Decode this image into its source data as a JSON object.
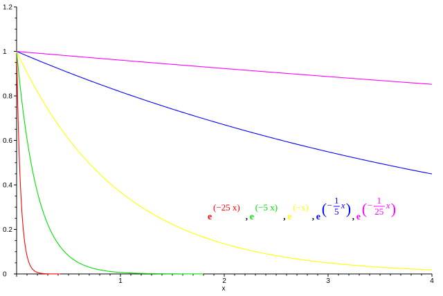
{
  "chart_data": {
    "type": "line",
    "title": "",
    "xlabel": "x",
    "ylabel": "",
    "xlim": [
      0,
      4
    ],
    "ylim": [
      0,
      1.2
    ],
    "x_ticks": [
      "1",
      "2",
      "3",
      "4"
    ],
    "y_ticks": [
      "0",
      "0.2",
      "0.4",
      "0.6",
      "0.8",
      "1",
      "1.2"
    ],
    "grid": false,
    "legend_position": "center-right",
    "legend_base": "e",
    "legend_separator": ",",
    "series": [
      {
        "rate": 25,
        "color": "#ff0000",
        "end_x": 0.42,
        "legend_exponent": "(−25 x)",
        "x": [
          0,
          0.02,
          0.04,
          0.06,
          0.08,
          0.1,
          0.12,
          0.16,
          0.2,
          0.25,
          0.3,
          0.42
        ],
        "y": [
          1,
          0.607,
          0.368,
          0.223,
          0.135,
          0.082,
          0.05,
          0.018,
          0.007,
          0.002,
          0.001,
          0
        ]
      },
      {
        "rate": 5,
        "color": "#00e000",
        "end_x": 1.8,
        "legend_exponent": "(−5 x)",
        "x": [
          0,
          0.1,
          0.2,
          0.3,
          0.4,
          0.5,
          0.6,
          0.8,
          1.0,
          1.2,
          1.5,
          1.8
        ],
        "y": [
          1,
          0.607,
          0.368,
          0.223,
          0.135,
          0.082,
          0.05,
          0.018,
          0.007,
          0.002,
          0.001,
          0
        ]
      },
      {
        "rate": 1,
        "color": "#ffff00",
        "end_x": 4,
        "legend_exponent": "(−x)",
        "x": [
          0,
          0.5,
          1,
          1.5,
          2,
          2.5,
          3,
          3.5,
          4
        ],
        "y": [
          1,
          0.607,
          0.368,
          0.223,
          0.135,
          0.082,
          0.05,
          0.03,
          0.018
        ]
      },
      {
        "rate": 0.2,
        "color": "#0000ff",
        "end_x": 4,
        "legend_exponent": {
          "sign": "−",
          "numerator": "1",
          "denominator": "5",
          "var": "x"
        },
        "x": [
          0,
          1,
          2,
          3,
          4
        ],
        "y": [
          1,
          0.819,
          0.67,
          0.549,
          0.449
        ]
      },
      {
        "rate": 0.04,
        "color": "#ff00ff",
        "end_x": 4,
        "legend_exponent": {
          "sign": "−",
          "numerator": "1",
          "denominator": "25",
          "var": "x"
        },
        "x": [
          0,
          1,
          2,
          3,
          4
        ],
        "y": [
          1,
          0.961,
          0.923,
          0.887,
          0.852
        ]
      }
    ]
  }
}
